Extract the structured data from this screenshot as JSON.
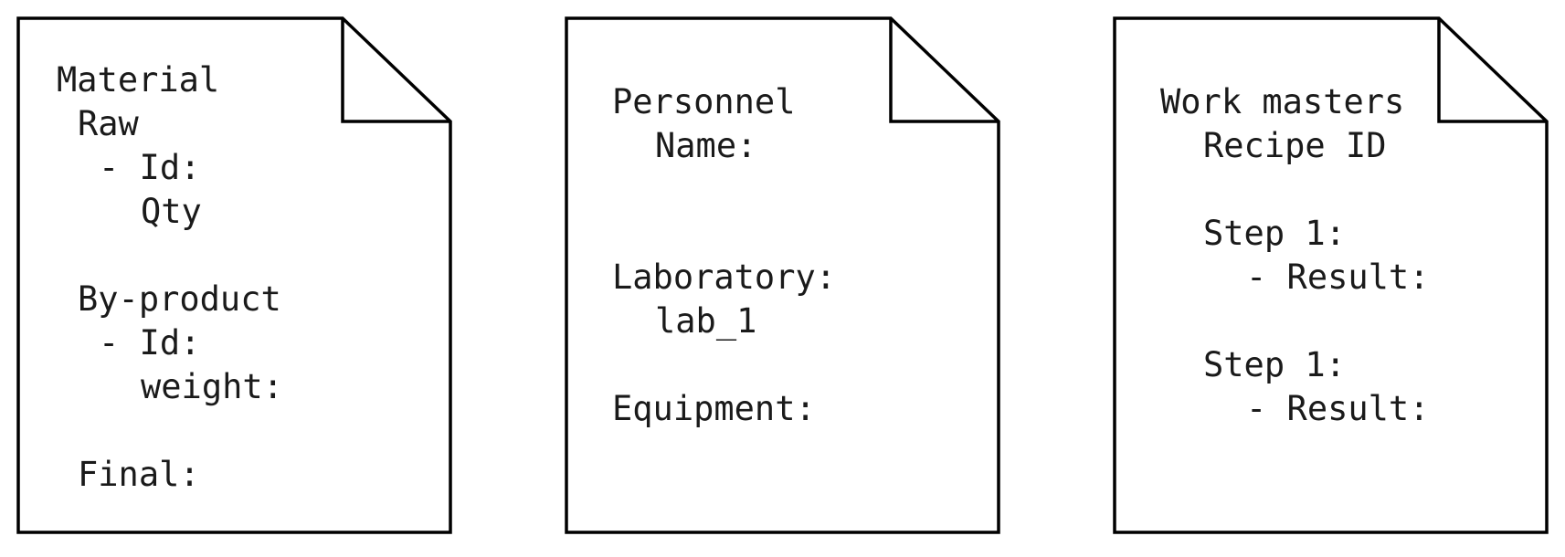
{
  "documents": [
    {
      "name": "material",
      "lines": [
        "Material",
        "Raw",
        "- Id:",
        "Qty",
        "By-product",
        "- Id:",
        "weight:",
        "Final:"
      ]
    },
    {
      "name": "personnel",
      "lines": [
        "Personnel",
        "Name:",
        "Laboratory:",
        "lab_1",
        "Equipment:"
      ]
    },
    {
      "name": "work-masters",
      "lines": [
        "Work masters",
        "Recipe ID",
        "Step 1:",
        "- Result:",
        "Step 1:",
        "- Result:"
      ]
    }
  ]
}
